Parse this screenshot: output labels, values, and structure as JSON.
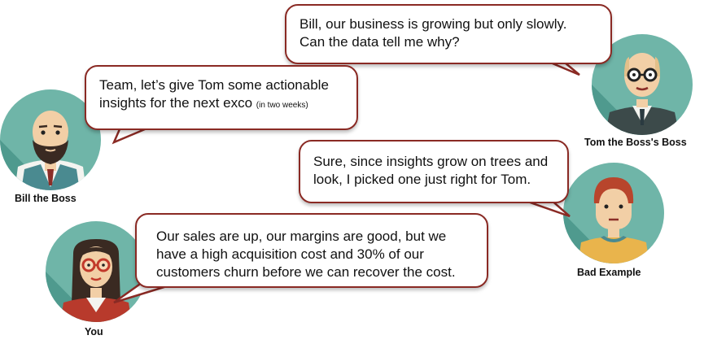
{
  "characters": {
    "bill": {
      "name": "Bill the Boss"
    },
    "tom": {
      "name": "Tom the Boss's Boss"
    },
    "bad": {
      "name": "Bad Example"
    },
    "you": {
      "name": "You"
    }
  },
  "bubbles": {
    "tom": {
      "line1": "Bill, our business is growing but only slowly.",
      "line2": "Can the data tell me why?"
    },
    "bill": {
      "line1": "Team, let’s give Tom some actionable",
      "line2": "insights for the next exco",
      "note": "(in two weeks)"
    },
    "bad": {
      "line1": "Sure, since insights grow on trees and",
      "line2": "look, I picked one just right for Tom."
    },
    "you": {
      "line1": "Our sales are up, our margins are good, but we",
      "line2": "have a high acquisition cost and 30% of our",
      "line3": "customers churn before we can recover the cost."
    }
  },
  "colors": {
    "avatar_teal": "#6fb5a8",
    "bubble_border": "#8a2a24",
    "skin": "#f2cfa6"
  }
}
